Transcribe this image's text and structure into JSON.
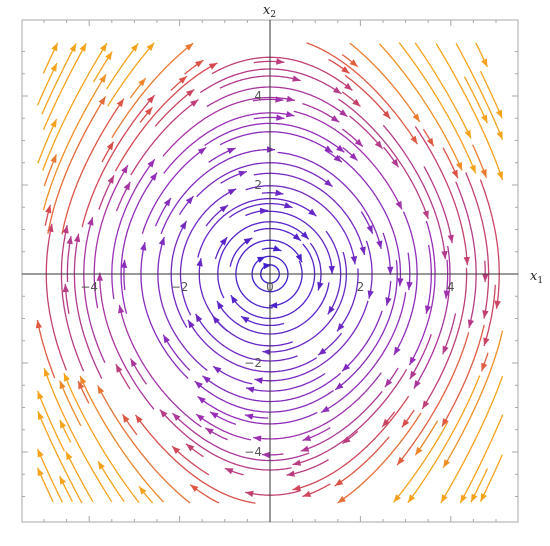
{
  "chart_data": {
    "type": "streamplot",
    "xlabel": "x",
    "xlabel_sub": "1",
    "ylabel": "x",
    "ylabel_sub": "2",
    "xlim": [
      -5.25,
      5.25
    ],
    "ylim": [
      -5.25,
      5.6
    ],
    "x_ticks": [
      -4,
      -2,
      0,
      2,
      4
    ],
    "y_ticks": [
      -4,
      -2,
      0,
      2,
      4
    ],
    "x_tick_labels": [
      "−4",
      "−2",
      "0",
      "2",
      "4"
    ],
    "y_tick_labels": [
      "−4",
      "−2",
      "0",
      "2",
      "4"
    ],
    "vector_field": {
      "dx1": "x2",
      "dx2": "-x1 - 0.05*x1*x2^2"
    },
    "frame": true,
    "grid": false,
    "color_scale": {
      "low_speed": "#3b1fd0",
      "mid_speed": "#9b2fb8",
      "high_speed": "#d94a4a",
      "max_speed": "#f6a21a"
    }
  }
}
